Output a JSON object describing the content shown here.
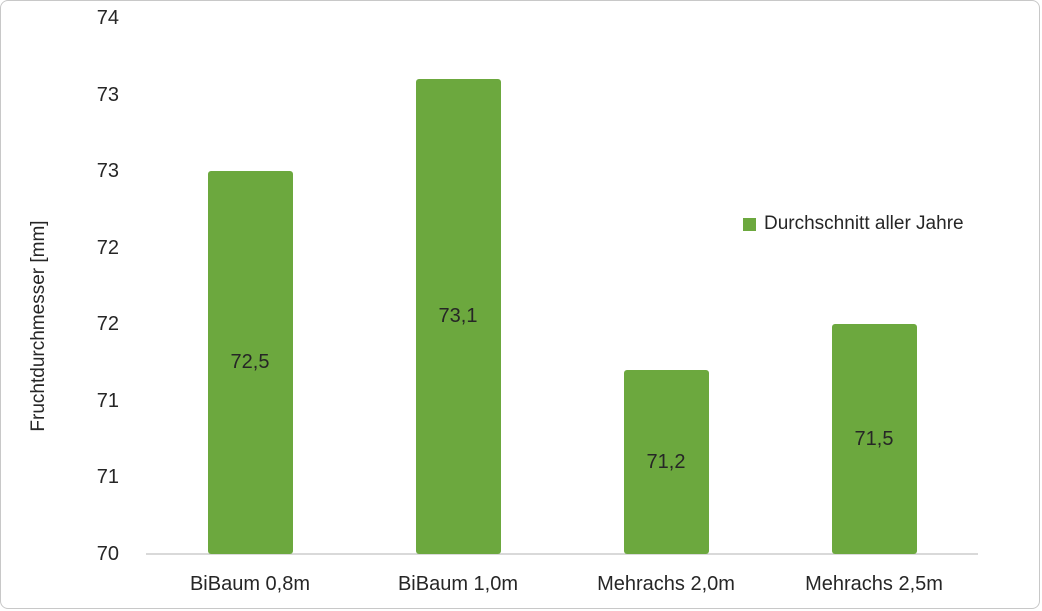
{
  "chart_data": {
    "type": "bar",
    "title": "",
    "categories": [
      "BiBaum 0,8m",
      "BiBaum 1,0m",
      "Mehrachs 2,0m",
      "Mehrachs 2,5m"
    ],
    "series": [
      {
        "name": "Durchschnitt aller Jahre",
        "values": [
          72.5,
          73.1,
          71.2,
          71.5
        ],
        "value_labels": [
          "72,5",
          "73,1",
          "71,2",
          "71,5"
        ]
      }
    ],
    "xlabel": "",
    "ylabel": "Fruchtdurchmesser [mm]",
    "ylim": [
      70,
      73.5
    ],
    "y_tick_step": 0.5,
    "y_ticks": [
      {
        "value": 73.5,
        "label": "74"
      },
      {
        "value": 73.0,
        "label": "73"
      },
      {
        "value": 72.5,
        "label": "73"
      },
      {
        "value": 72.0,
        "label": "72"
      },
      {
        "value": 71.5,
        "label": "72"
      },
      {
        "value": 71.0,
        "label": "71"
      },
      {
        "value": 70.5,
        "label": "71"
      },
      {
        "value": 70.0,
        "label": "70"
      }
    ],
    "grid": false,
    "data_labels": "centered-inside-bar",
    "legend_position": "right-middle"
  },
  "legend": {
    "label": "Durchschnitt aller Jahre"
  },
  "colors": {
    "bar": "#6CA83E",
    "text": "#262626",
    "axis_line": "#D9D9D9",
    "frame_border": "#C8C8C8",
    "background": "#FFFFFF"
  }
}
